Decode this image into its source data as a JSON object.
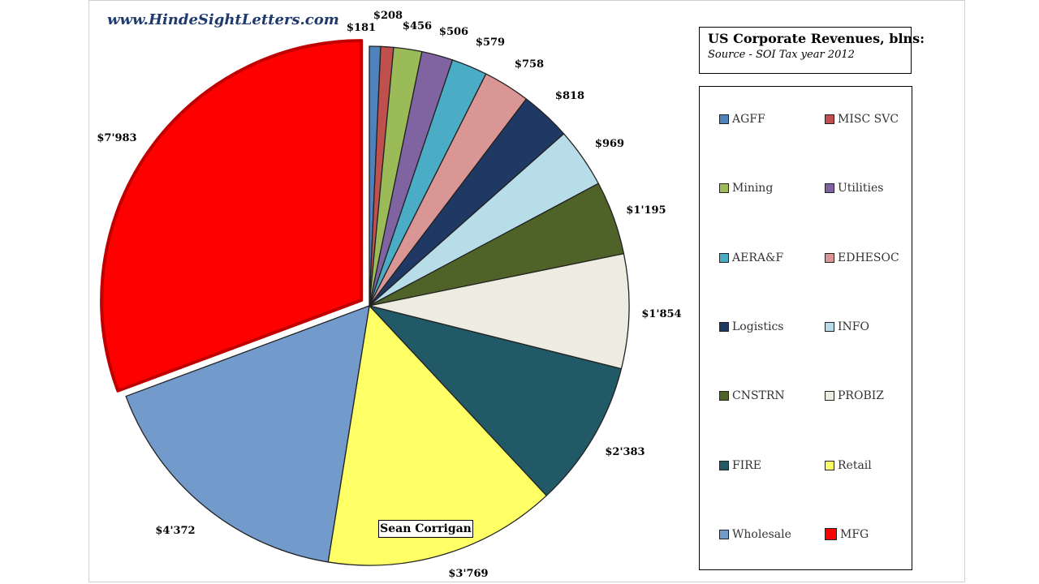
{
  "watermark": "www.HindeSightLetters.com",
  "title": "US Corporate Revenues, blns:",
  "subtitle": "Source - SOI Tax year 2012",
  "author": "Sean Corrigan",
  "chart_data": {
    "type": "pie",
    "title": "US Corporate Revenues, blns:",
    "subtitle": "Source - SOI Tax year 2012",
    "unit": "blns",
    "legend_position": "right",
    "exploded": "MFG",
    "slices": [
      {
        "name": "AGFF",
        "value": 181,
        "label": "$181",
        "color": "#4f81bd"
      },
      {
        "name": "MISC SVC",
        "value": 208,
        "label": "$208",
        "color": "#c0504d"
      },
      {
        "name": "Mining",
        "value": 456,
        "label": "$456",
        "color": "#9bbb59"
      },
      {
        "name": "Utilities",
        "value": 506,
        "label": "$506",
        "color": "#8064a2"
      },
      {
        "name": "AERA&F",
        "value": 579,
        "label": "$579",
        "color": "#4bacc6"
      },
      {
        "name": "EDHESOC",
        "value": 758,
        "label": "$758",
        "color": "#d99694"
      },
      {
        "name": "Logistics",
        "value": 818,
        "label": "$818",
        "color": "#1f3864"
      },
      {
        "name": "INFO",
        "value": 969,
        "label": "$969",
        "color": "#b7dde8"
      },
      {
        "name": "CNSTRN",
        "value": 1195,
        "label": "$1'195",
        "color": "#4f6228"
      },
      {
        "name": "PROBIZ",
        "value": 1854,
        "label": "$1'854",
        "color": "#eeece1"
      },
      {
        "name": "FIRE",
        "value": 2383,
        "label": "$2'383",
        "color": "#215967"
      },
      {
        "name": "Retail",
        "value": 3769,
        "label": "$3'769",
        "color": "#ffff66"
      },
      {
        "name": "Wholesale",
        "value": 4372,
        "label": "$4'372",
        "color": "#729acb"
      },
      {
        "name": "MFG",
        "value": 7983,
        "label": "$7'983",
        "color": "#ff0000"
      }
    ]
  }
}
